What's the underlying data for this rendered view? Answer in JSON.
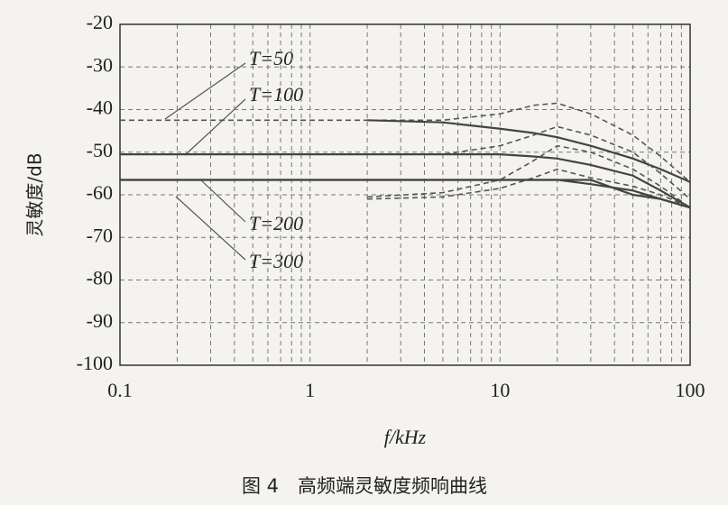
{
  "chart_data": {
    "type": "line",
    "xscale": "log",
    "grid": true,
    "xlabel": "f/kHz",
    "ylabel": "灵敏度/dB",
    "caption": "图 4　高频端灵敏度频响曲线",
    "x": [
      0.1,
      0.2,
      0.5,
      1,
      2,
      5,
      10,
      15,
      20,
      30,
      50,
      70,
      100
    ],
    "xlim": [
      0.1,
      100
    ],
    "xticks": [
      0.1,
      1,
      10,
      100
    ],
    "xminor_grid": [
      0.2,
      0.3,
      0.4,
      0.5,
      0.6,
      0.7,
      0.8,
      0.9,
      2,
      3,
      4,
      5,
      6,
      7,
      8,
      9,
      20,
      30,
      40,
      50,
      60,
      70,
      80,
      90
    ],
    "ylim": [
      -100,
      -20
    ],
    "yticks": [
      -100,
      -90,
      -80,
      -70,
      -60,
      -50,
      -40,
      -30,
      -20
    ],
    "series": [
      {
        "style": "dashed",
        "color": "#555555",
        "values": [
          -42.5,
          -42.5,
          -42.5,
          -42.5,
          -42.5,
          -42.5,
          -41,
          -39,
          -38.5,
          -41,
          -46,
          -51,
          -57
        ]
      },
      {
        "style": "solid",
        "color": "#444444",
        "values": [
          null,
          null,
          null,
          null,
          -42.5,
          -43,
          -44.5,
          -45.5,
          -46.5,
          -48.5,
          -51.5,
          -54,
          -57
        ]
      },
      {
        "style": "dashed",
        "color": "#555555",
        "values": [
          -50.5,
          -50.5,
          -50.5,
          -50.5,
          -50.5,
          -50.5,
          -48.5,
          -46,
          -44,
          -46,
          -50,
          -55,
          -61
        ]
      },
      {
        "style": "solid",
        "color": "#444444",
        "values": [
          -50.5,
          -50.5,
          -50.5,
          -50.5,
          -50.5,
          -50.5,
          -50.5,
          -51,
          -51.5,
          -53,
          -55.5,
          -59,
          -63
        ]
      },
      {
        "style": "dashed",
        "color": "#555555",
        "values": [
          null,
          null,
          null,
          null,
          -60.5,
          -59.5,
          -56.5,
          -52,
          -48.5,
          -50,
          -54,
          -58,
          -63
        ]
      },
      {
        "style": "solid",
        "color": "#444444",
        "values": [
          -56.5,
          -56.5,
          -56.5,
          -56.5,
          -56.5,
          -56.5,
          -56.5,
          -56.5,
          -56.5,
          -57.5,
          -59,
          -61,
          -63
        ]
      },
      {
        "style": "dashed",
        "color": "#555555",
        "values": [
          null,
          null,
          null,
          null,
          -61,
          -60.5,
          -58.5,
          -56,
          -54,
          -56,
          -58,
          -60,
          -63
        ]
      },
      {
        "style": "solid",
        "color": "#444444",
        "values": [
          -56.5,
          -56.5,
          -56.5,
          -56.5,
          -56.5,
          -56.5,
          -56.5,
          -56.5,
          -56.5,
          -56.5,
          -60,
          -61,
          -63
        ]
      }
    ],
    "annotations": [
      "T=50",
      "T=100",
      "T=200",
      "T=300"
    ]
  }
}
